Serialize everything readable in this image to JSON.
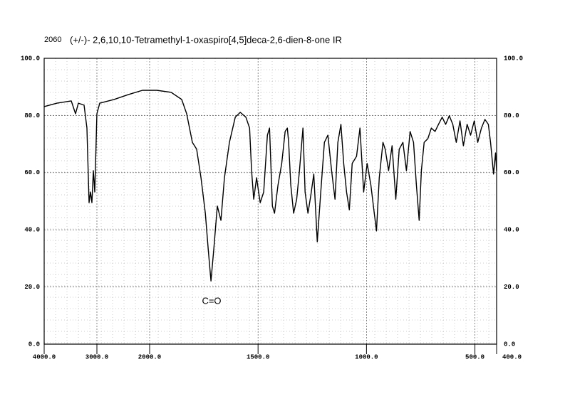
{
  "chart_data": {
    "type": "line",
    "id_label": "2060",
    "title": "(+/-)- 2,6,10,10-Tetramethyl-1-oxaspiro[4,5]deca-2,6-dien-8-one IR",
    "annotation": "C=O",
    "color": "#000000",
    "grid": true,
    "x": [
      4000,
      3757,
      3486,
      3405,
      3351,
      3243,
      3189,
      3149,
      3122,
      3095,
      3068,
      3041,
      3000,
      2946,
      2676,
      2405,
      2135,
      1967,
      1901,
      1852,
      1829,
      1803,
      1783,
      1763,
      1743,
      1730,
      1717,
      1704,
      1688,
      1671,
      1655,
      1632,
      1605,
      1582,
      1556,
      1539,
      1530,
      1520,
      1507,
      1490,
      1474,
      1457,
      1447,
      1434,
      1424,
      1408,
      1391,
      1375,
      1365,
      1359,
      1349,
      1336,
      1322,
      1309,
      1293,
      1283,
      1270,
      1257,
      1243,
      1227,
      1211,
      1194,
      1178,
      1161,
      1145,
      1132,
      1118,
      1105,
      1092,
      1079,
      1066,
      1046,
      1030,
      1013,
      997,
      980,
      964,
      954,
      941,
      924,
      914,
      898,
      882,
      865,
      849,
      832,
      816,
      799,
      783,
      770,
      757,
      747,
      734,
      717,
      701,
      684,
      668,
      651,
      635,
      618,
      602,
      586,
      569,
      553,
      536,
      520,
      503,
      487,
      470,
      454,
      438,
      428,
      414,
      405,
      400
    ],
    "values": [
      83.1,
      84.3,
      85.1,
      80.6,
      84.3,
      83.6,
      75.6,
      49.5,
      53.2,
      49.5,
      60.7,
      53.2,
      80.6,
      84.3,
      85.6,
      87.3,
      88.8,
      88.8,
      88.1,
      85.6,
      80.6,
      70.6,
      68.2,
      58.2,
      45.8,
      33.3,
      22.1,
      33.3,
      48.3,
      43.3,
      58.2,
      70.6,
      79.4,
      81.1,
      79.4,
      75.6,
      60.7,
      50.7,
      58.2,
      49.5,
      53.2,
      73.1,
      75.6,
      48.3,
      45.8,
      55.7,
      63.2,
      74.4,
      75.6,
      70.6,
      55.7,
      45.8,
      50.7,
      60.7,
      75.6,
      53.2,
      45.8,
      52.0,
      59.5,
      35.8,
      53.2,
      70.6,
      73.1,
      60.7,
      50.7,
      70.6,
      76.9,
      63.2,
      53.2,
      47.0,
      63.2,
      65.7,
      75.6,
      53.2,
      63.2,
      55.7,
      45.8,
      39.6,
      58.2,
      70.6,
      68.2,
      60.7,
      69.4,
      50.7,
      68.2,
      70.6,
      60.7,
      74.4,
      70.6,
      55.7,
      43.3,
      60.7,
      70.6,
      71.9,
      75.6,
      74.4,
      76.9,
      79.4,
      76.9,
      79.9,
      76.9,
      70.6,
      78.1,
      69.4,
      76.9,
      73.1,
      78.1,
      70.6,
      75.6,
      78.6,
      76.9,
      70.6,
      59.5,
      66.9,
      60.7
    ],
    "xlim": [
      4000,
      400
    ],
    "xticks": [
      {
        "value": 4000,
        "label": "4000.0"
      },
      {
        "value": 3000,
        "label": "3000.0"
      },
      {
        "value": 2000,
        "label": "2000.0"
      },
      {
        "value": 1500,
        "label": "1500.0"
      },
      {
        "value": 1000,
        "label": "1000.0"
      },
      {
        "value": 500,
        "label": "500.0"
      },
      {
        "value": 400,
        "label": "400.0"
      }
    ],
    "ylim": [
      0,
      100
    ],
    "yticks": [
      {
        "value": 0,
        "label": "0.0"
      },
      {
        "value": 20,
        "label": "20.0"
      },
      {
        "value": 40,
        "label": "40.0"
      },
      {
        "value": 60,
        "label": "60.0"
      },
      {
        "value": 80,
        "label": "80.0"
      },
      {
        "value": 100,
        "label": "100.0"
      }
    ]
  }
}
